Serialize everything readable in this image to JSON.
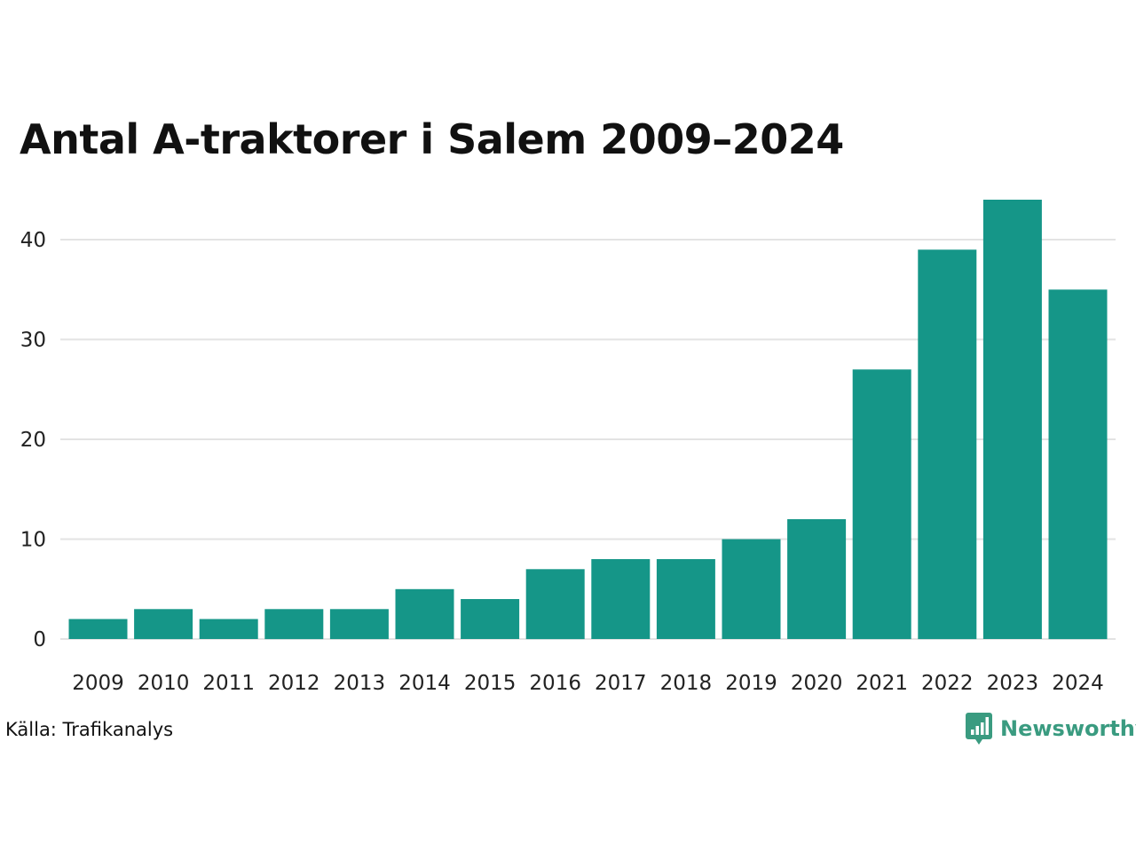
{
  "chart_data": {
    "type": "bar",
    "title": "Antal A-traktorer i Salem 2009–2024",
    "categories": [
      "2009",
      "2010",
      "2011",
      "2012",
      "2013",
      "2014",
      "2015",
      "2016",
      "2017",
      "2018",
      "2019",
      "2020",
      "2021",
      "2022",
      "2023",
      "2024"
    ],
    "values": [
      2,
      3,
      2,
      3,
      3,
      5,
      4,
      7,
      8,
      8,
      10,
      12,
      27,
      39,
      44,
      35
    ],
    "yticks": [
      "0",
      "10",
      "20",
      "30",
      "40"
    ],
    "ylim": [
      0,
      44
    ],
    "grid": true,
    "bar_color": "#159688",
    "grid_color": "#e3e3e3"
  },
  "footer": {
    "source": "Källa: Trafikanalys",
    "brand": "Newsworthy",
    "brand_icon": "newsworthy-logo-icon",
    "brand_color": "#3a9b80"
  }
}
